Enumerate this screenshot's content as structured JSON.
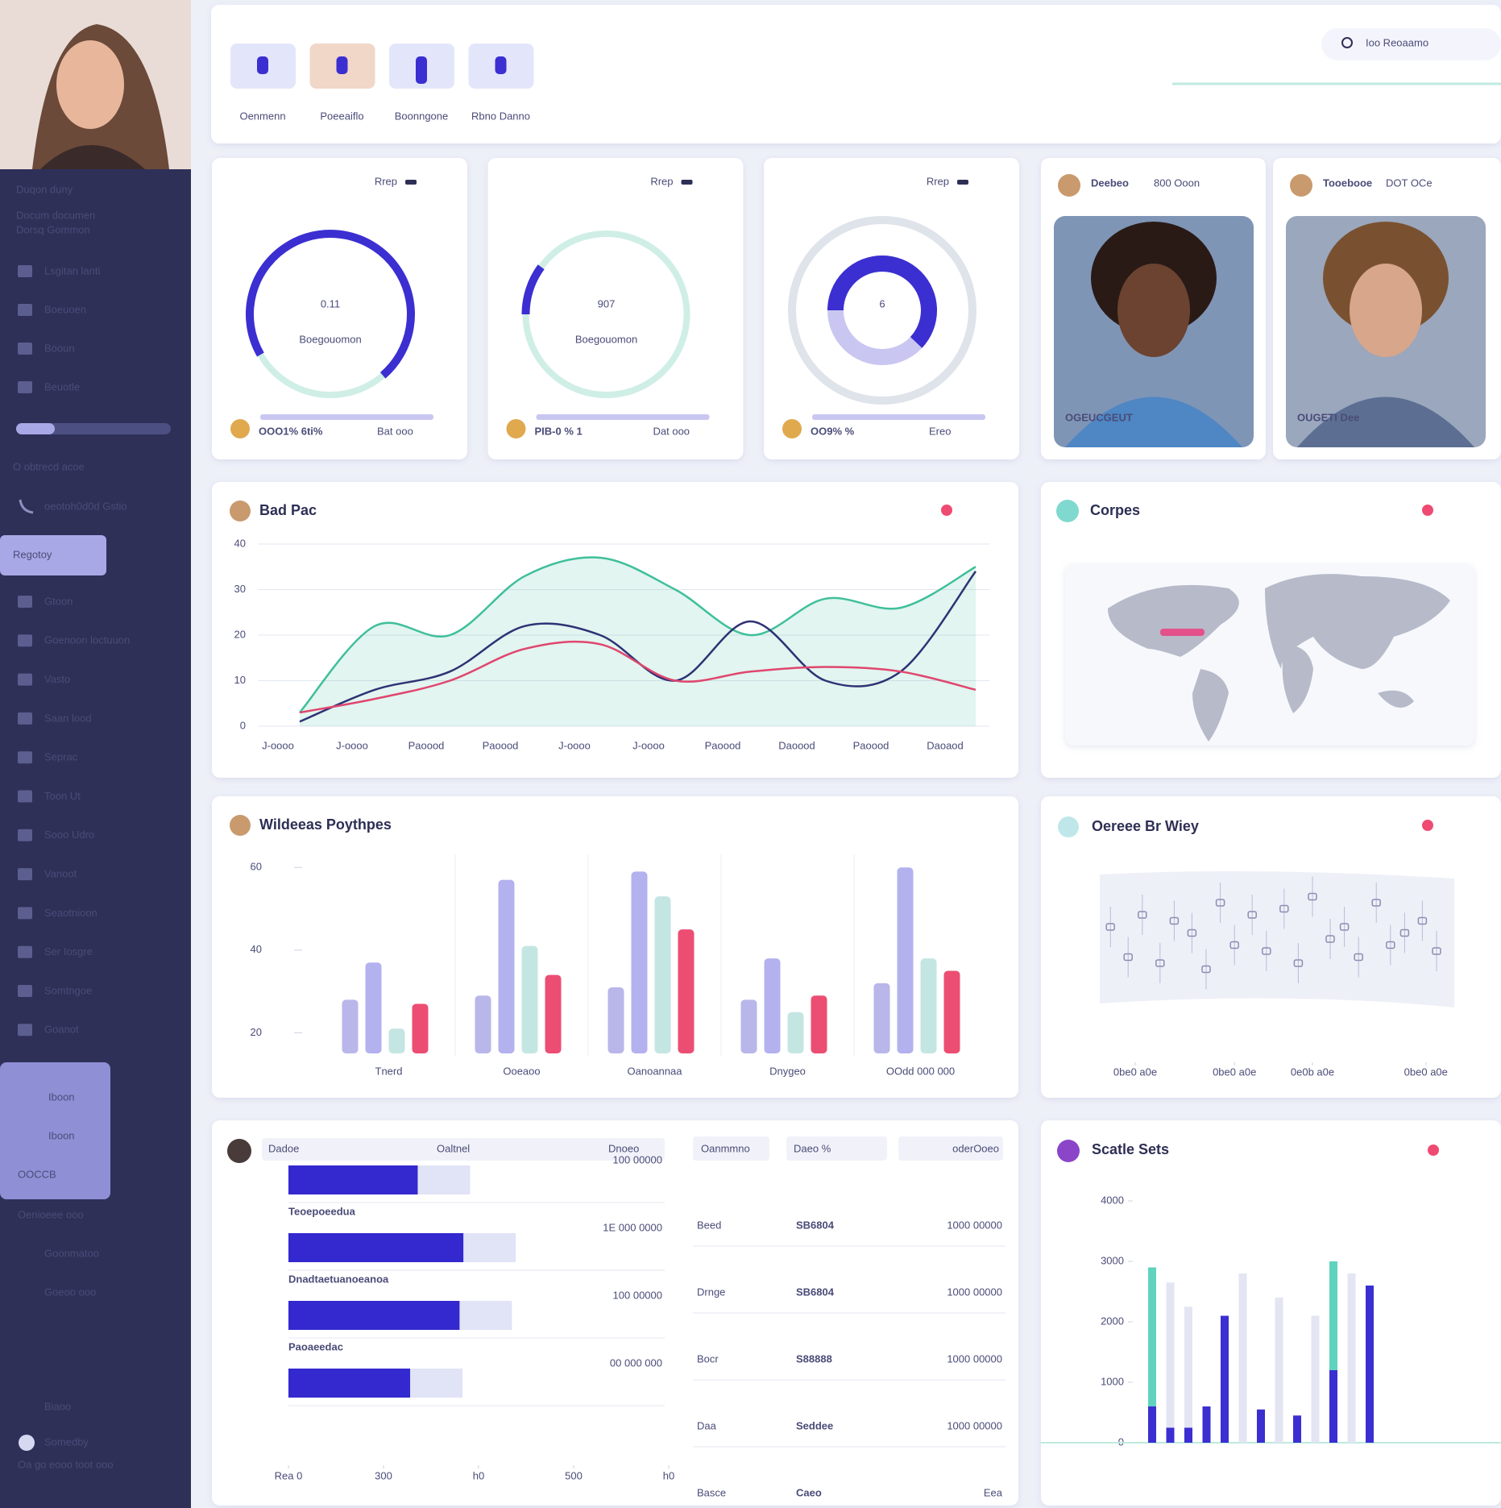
{
  "sidebar": {
    "name": "Duqon duny",
    "bio": [
      "Docum documen",
      "Dorsq Gommon"
    ],
    "menu": [
      "Lsgitan lanti",
      "Boeuoen",
      "Booun",
      "Beuotle"
    ],
    "section": "O obtrecd acoe",
    "phone": "oeotoh0d0d Gstio",
    "active": "Regotoy",
    "menu2": [
      "Gtoon",
      "Goenoon loctuuon",
      "Vasto",
      "Saan lood",
      "Seprac",
      "Toon Ut",
      "Sooo Udro",
      "Vanoot",
      "Seaotnioon",
      "Ser Iosgre",
      "Somtngoe",
      "Goanot"
    ],
    "sub": [
      "Iboon",
      "Iboon",
      "OOCCB"
    ],
    "foot": [
      "Oenioeee ooo",
      "Goonmatoo",
      "Goeoo ooo"
    ],
    "settings": "Biaoo",
    "user": "Somedby",
    "user_sub": "Oa go eooo toot ooo"
  },
  "top": {
    "tabs": [
      "Oenmenn",
      "Poeeaiflo",
      "Boonngone",
      "Rbno Danno"
    ],
    "search": "Ioo Reoaamo"
  },
  "gauges": [
    {
      "menu": "Rrep",
      "value": "0.11",
      "caption": "Boegouomon",
      "stat": "OOO1% 6ti%",
      "note": "Bat ooo",
      "progress": 72
    },
    {
      "menu": "Rrep",
      "value": "907",
      "caption": "Boegouomon",
      "stat": "PIB-0 % 1",
      "note": "Dat ooo",
      "progress": 10
    },
    {
      "menu": "Rrep",
      "value": "6",
      "stat": "OO9% %",
      "note": "Ereo",
      "progress": 62
    }
  ],
  "people": [
    {
      "name": "Deebeo",
      "meta": "800 Ooon",
      "caption": "OGEUCGEUT"
    },
    {
      "name": "Tooebooe",
      "meta": "DOT OCe",
      "caption": "OUGETI Dee"
    }
  ],
  "map": {
    "title": "Corpes"
  },
  "table": {
    "headers": [
      "Oanmmno",
      "Daeo %",
      "oderOoeo"
    ],
    "rows": [
      [
        "Beed",
        "SB6804",
        "1000 00000"
      ],
      [
        "Drnge",
        "SB6804",
        "1000 00000"
      ],
      [
        "Bocr",
        "S88888",
        "1000 00000"
      ],
      [
        "Daa",
        "Seddee",
        "1000 00000"
      ],
      [
        "Basce",
        "Caeo",
        "Eea"
      ]
    ]
  },
  "hbar_notes": [
    "100 00000",
    "1E 000 0000",
    "100 00000",
    "00 000 000"
  ],
  "chart_data": [
    {
      "type": "line",
      "title": "Bad Pac",
      "categories": [
        "J-oooo",
        "J-oooo",
        "Paoood",
        "Paoood",
        "J-oooo",
        "J-oooo",
        "Paoood",
        "Daoood",
        "Paoood",
        "Daoaod"
      ],
      "series": [
        {
          "name": "A",
          "color": "#3fbf9a",
          "values": [
            3,
            22,
            20,
            33,
            37,
            30,
            20,
            28,
            26,
            35
          ]
        },
        {
          "name": "B",
          "color": "#2f3275",
          "values": [
            1,
            8,
            12,
            22,
            20,
            10,
            23,
            10,
            12,
            34
          ]
        },
        {
          "name": "C",
          "color": "#e0466f",
          "values": [
            3,
            6,
            10,
            17,
            18,
            10,
            12,
            13,
            12,
            8
          ]
        }
      ],
      "ylim": [
        0,
        40
      ],
      "yticks": [
        0,
        10,
        20,
        30,
        40
      ]
    },
    {
      "type": "bar",
      "title": "Wildeeas Poythpes",
      "categories": [
        "Tnerd",
        "Ooeaoo",
        "Oanoannaa",
        "Dnygeo",
        "OOdd 000 000"
      ],
      "series": [
        {
          "name": "A",
          "color": "#b9b6ea",
          "values": [
            28,
            29,
            31,
            28,
            32
          ]
        },
        {
          "name": "B",
          "color": "#b3b1ee",
          "values": [
            37,
            57,
            59,
            38,
            60
          ]
        },
        {
          "name": "C",
          "color": "#c4e6e3",
          "values": [
            21,
            41,
            53,
            25,
            38
          ]
        },
        {
          "name": "D",
          "color": "#ec4d72",
          "values": [
            27,
            34,
            45,
            29,
            35
          ]
        }
      ],
      "ylim": [
        15,
        62
      ],
      "yticks": [
        20,
        40,
        60
      ]
    },
    {
      "type": "scatter",
      "title": "Oereee Br Wiey",
      "x": [
        3,
        8,
        12,
        17,
        21,
        26,
        30,
        34,
        38,
        43,
        47,
        52,
        56,
        60,
        65,
        69,
        73,
        78,
        82,
        86,
        91,
        95
      ],
      "y": [
        60,
        35,
        70,
        30,
        65,
        55,
        25,
        80,
        45,
        70,
        40,
        75,
        30,
        85,
        50,
        60,
        35,
        80,
        45,
        55,
        65,
        40
      ],
      "xlim": [
        0,
        100
      ],
      "ylim": [
        0,
        100
      ],
      "xticks": [
        {
          "value": 10,
          "label": "0be0 a0e"
        },
        {
          "value": 38,
          "label": "0be0 a0e"
        },
        {
          "value": 60,
          "label": "0e0b a0e"
        },
        {
          "value": 92,
          "label": "0be0 a0e"
        }
      ]
    },
    {
      "type": "hbar",
      "headers": [
        "Dadoe",
        "Oaltnel",
        "Dnoeo"
      ],
      "categories": [
        null,
        "Teoepoeedua",
        "Dnadtaetuanoeanoa",
        "Paoaeedac"
      ],
      "values": [
        34,
        46,
        45,
        32
      ],
      "xlim": [
        0,
        100
      ],
      "xticks": [
        {
          "value": 0,
          "label": "Rea 0"
        },
        {
          "value": 25,
          "label": "300"
        },
        {
          "value": 50,
          "label": "h0"
        },
        {
          "value": 75,
          "label": "500"
        },
        {
          "value": 100,
          "label": "h0"
        }
      ]
    },
    {
      "type": "stacked_bar",
      "title": "Scatle Sets",
      "categories": [
        null,
        null,
        null,
        null,
        null,
        null,
        null,
        null,
        null,
        null,
        null,
        null,
        null
      ],
      "series": [
        {
          "name": "A",
          "color": "#3b2fd1",
          "values": [
            600,
            250,
            250,
            600,
            2100,
            0,
            550,
            0,
            450,
            0,
            1200,
            0,
            2600
          ]
        },
        {
          "name": "B",
          "color": "#5fd3bd",
          "values": [
            2300,
            0,
            0,
            0,
            0,
            0,
            0,
            0,
            0,
            0,
            1800,
            0,
            0
          ]
        },
        {
          "name": "C",
          "color": "#e3e5f3",
          "values": [
            0,
            2400,
            2000,
            0,
            0,
            2800,
            0,
            2400,
            0,
            2100,
            0,
            2800,
            0
          ]
        }
      ],
      "ylim": [
        0,
        4000
      ],
      "yticks": [
        0,
        1000,
        2000,
        3000,
        4000
      ]
    }
  ]
}
